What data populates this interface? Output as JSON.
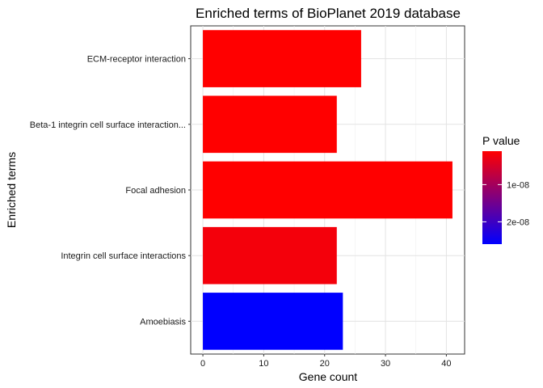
{
  "chart_data": {
    "type": "bar",
    "orientation": "horizontal",
    "title": "Enriched terms of BioPlanet 2019 database",
    "xlabel": "Gene count",
    "ylabel": "Enriched terms",
    "categories": [
      "ECM-receptor interaction",
      "Beta-1 integrin cell surface interaction...",
      "Focal adhesion",
      "Integrin cell surface interactions",
      "Amoebiasis"
    ],
    "values": [
      26,
      22,
      41,
      22,
      23
    ],
    "p_values": [
      1.2e-09,
      1.5e-09,
      1e-09,
      4e-09,
      2.6e-08
    ],
    "bar_colors": [
      "#FF0000",
      "#FF0000",
      "#FF0000",
      "#F4000B",
      "#0000FF"
    ],
    "xlim": [
      -2,
      43
    ],
    "xticks": [
      0,
      10,
      20,
      30,
      40
    ],
    "grid": true,
    "legend": {
      "title": "P value",
      "position": "right",
      "gradient": [
        "#FF0000",
        "#0000FF"
      ],
      "domain": [
        1e-09,
        2.6e-08
      ],
      "ticks": [
        {
          "label": "1e-08",
          "value": 1e-08
        },
        {
          "label": "2e-08",
          "value": 2e-08
        }
      ]
    }
  }
}
